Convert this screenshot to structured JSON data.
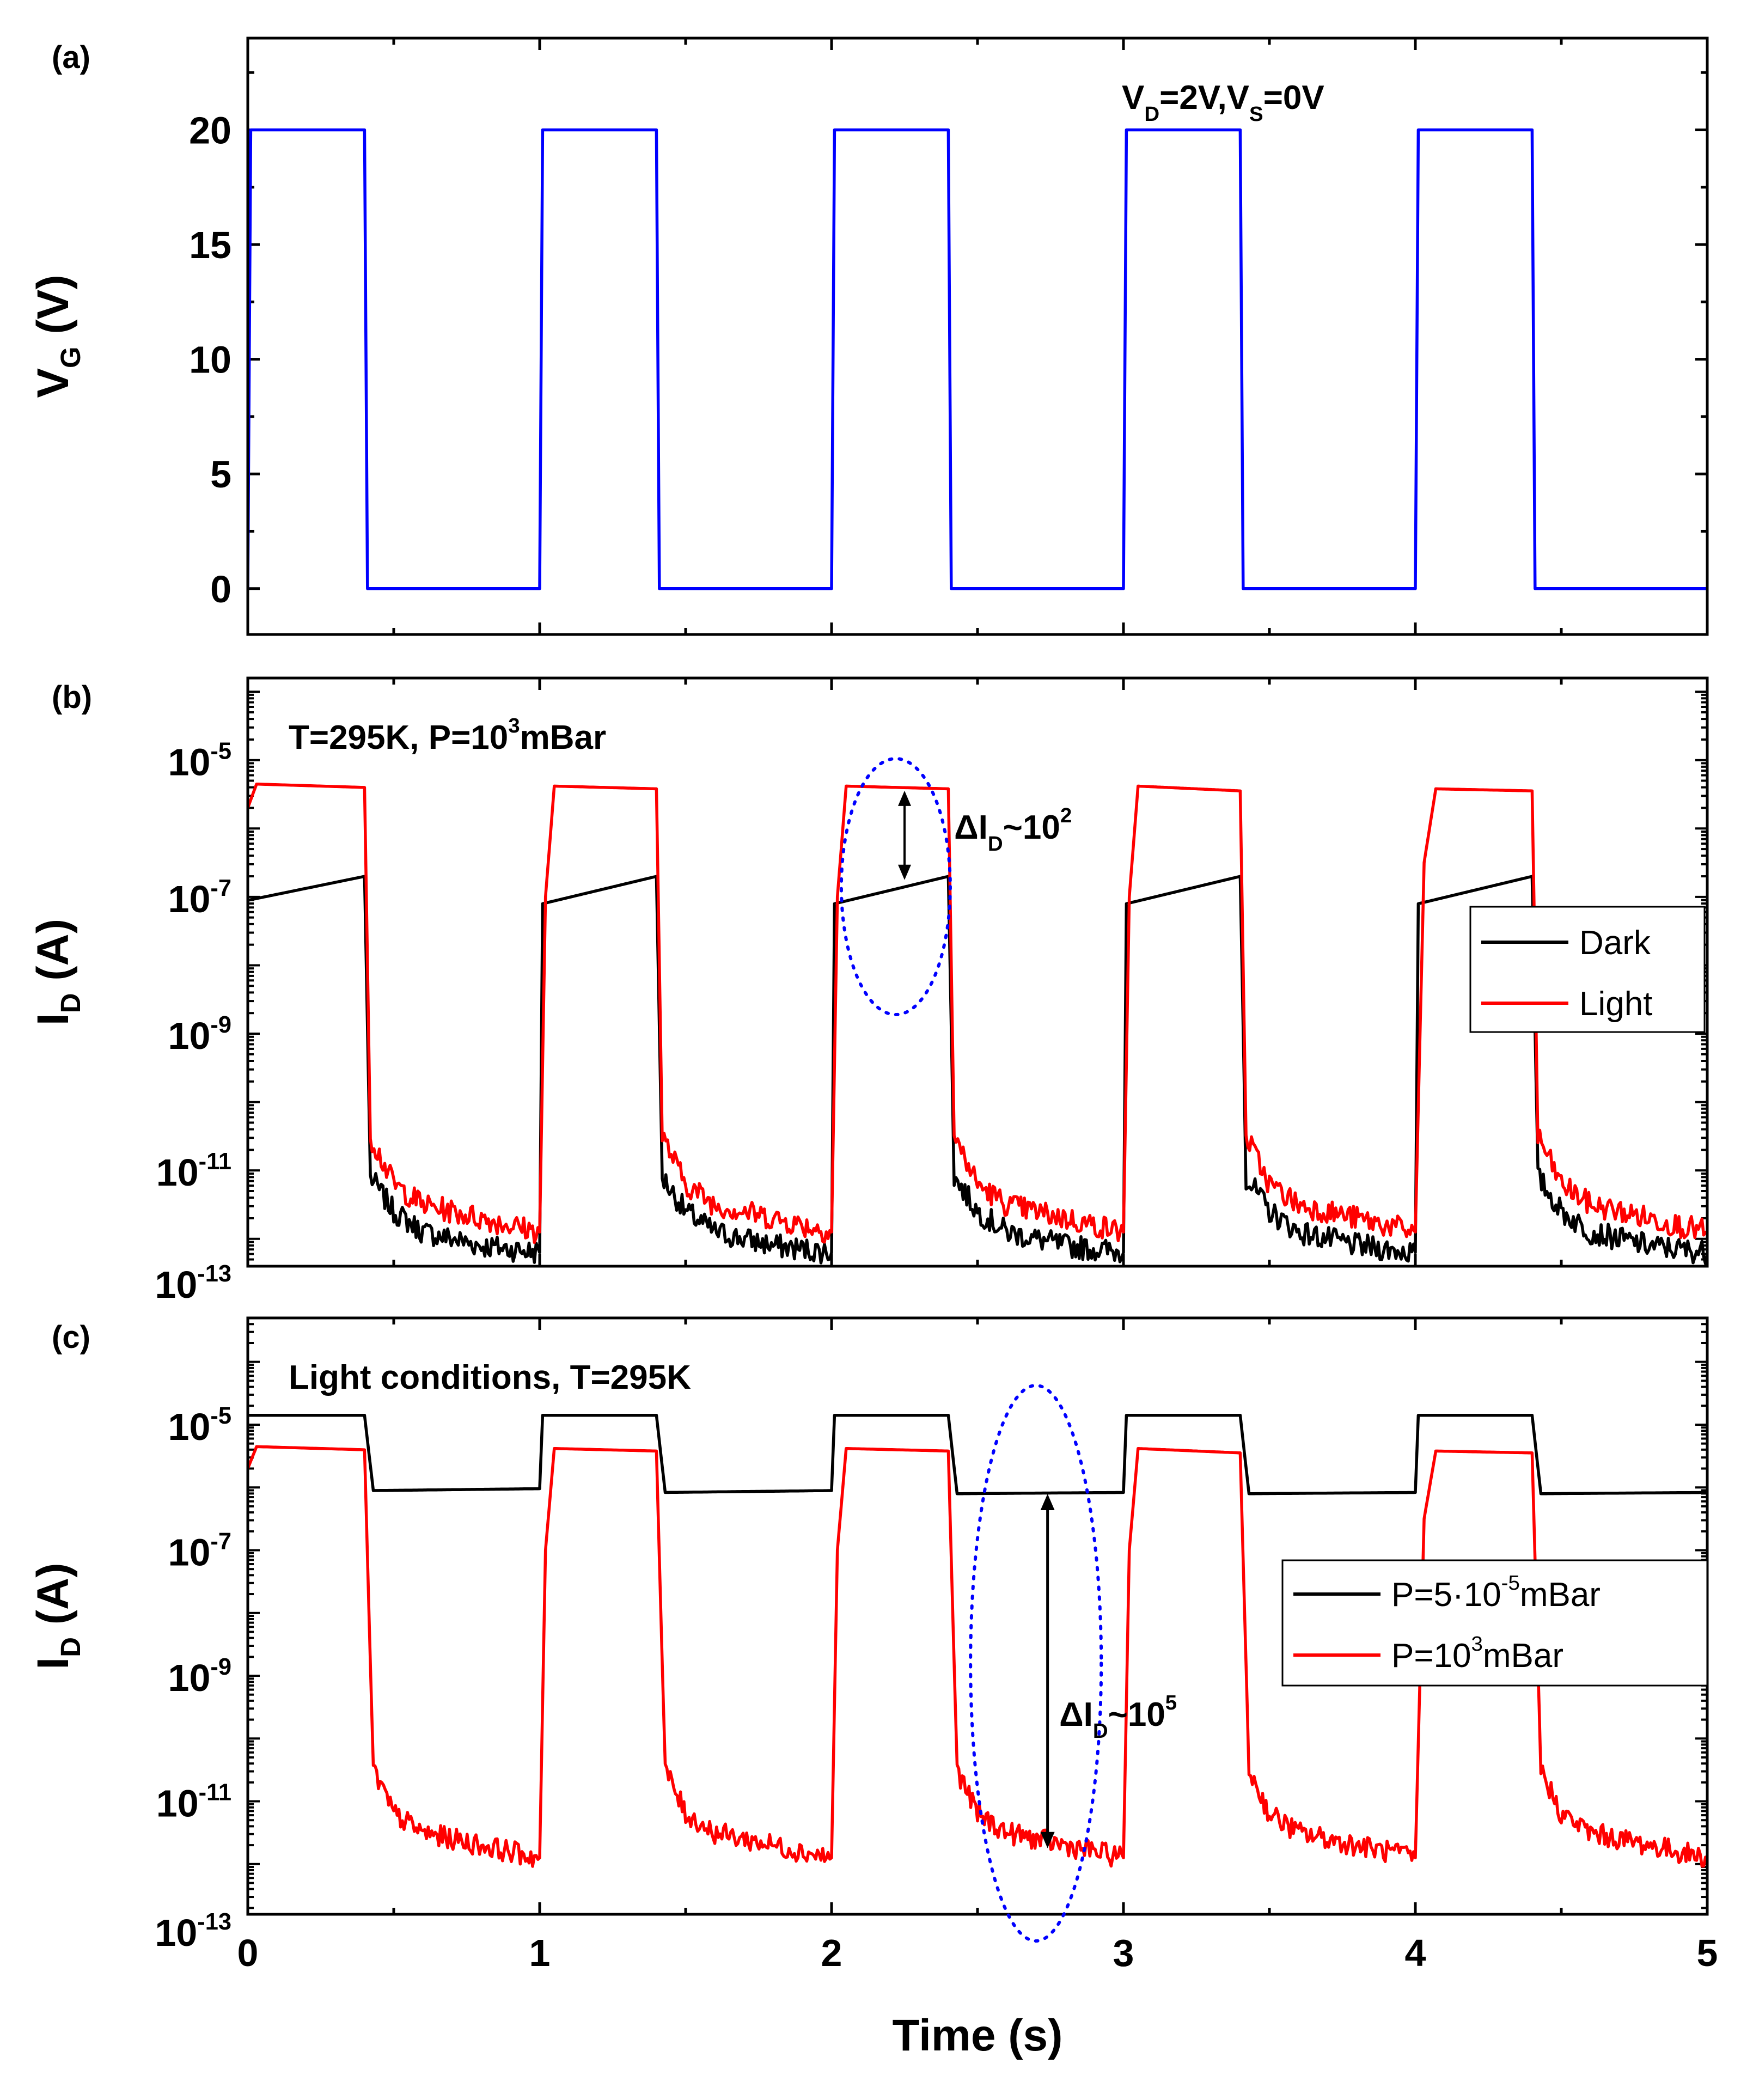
{
  "colors": {
    "vg_line": "#0000ff",
    "dark": "#000000",
    "light": "#ff0000",
    "ellipse": "#0000ff"
  },
  "chart_data": [
    {
      "type": "line",
      "panel": "(a)",
      "xlabel": "",
      "ylabel": "V",
      "ylabel_sub": "G",
      "ylabel_unit": " (V)",
      "xlim": [
        0,
        5
      ],
      "ylim": [
        -2,
        24
      ],
      "yticks": [
        "0",
        "5",
        "10",
        "15",
        "20"
      ],
      "annotation": {
        "parts": [
          [
            "V",
            ""
          ],
          [
            "D",
            "sub"
          ],
          [
            "=2V,V",
            ""
          ],
          [
            "S",
            "sub"
          ],
          [
            "=0V",
            ""
          ]
        ]
      },
      "series": [
        {
          "name": "V_G",
          "color": "#0000ff",
          "x": [
            0,
            0.01,
            0.4,
            0.41,
            1.0,
            1.01,
            1.4,
            1.41,
            2.0,
            2.01,
            2.4,
            2.41,
            3.0,
            3.01,
            3.4,
            3.41,
            4.0,
            4.01,
            4.4,
            4.41,
            5.0
          ],
          "y": [
            0,
            20,
            20,
            0,
            0,
            20,
            20,
            0,
            0,
            20,
            20,
            0,
            0,
            20,
            20,
            0,
            0,
            20,
            20,
            0,
            0
          ]
        }
      ]
    },
    {
      "type": "line",
      "panel": "(b)",
      "ylabel": "I",
      "ylabel_sub": "D",
      "ylabel_unit": " (A)",
      "yscale": "log",
      "xlim": [
        0,
        5
      ],
      "ylim_log10": [
        -12.4,
        -3.8
      ],
      "yticks": [
        {
          "base": "10",
          "exp": "-5"
        },
        {
          "base": "10",
          "exp": "-7"
        },
        {
          "base": "10",
          "exp": "-9"
        },
        {
          "base": "10",
          "exp": "-11"
        },
        {
          "base": "10",
          "exp": "-13"
        }
      ],
      "annotation": {
        "parts": [
          [
            "T=295K, P=10",
            ""
          ],
          [
            "3",
            "sup"
          ],
          [
            "mBar",
            ""
          ]
        ]
      },
      "delta_label": {
        "parts": [
          [
            "ΔI",
            ""
          ],
          [
            "D",
            "sub"
          ],
          [
            "~10",
            ""
          ],
          [
            "2",
            "sup"
          ]
        ]
      },
      "legend": [
        "Dark",
        "Light"
      ],
      "series": [
        {
          "name": "Dark",
          "color": "#000000",
          "x": [
            0,
            0.4,
            0.42,
            0.5,
            0.6,
            0.8,
            1.0,
            1.01,
            1.4,
            1.42,
            1.5,
            1.6,
            1.8,
            2.0,
            2.01,
            2.4,
            2.42,
            2.5,
            2.6,
            2.8,
            3.0,
            3.01,
            3.4,
            3.42,
            3.5,
            3.6,
            3.8,
            4.0,
            4.01,
            4.4,
            4.42,
            4.5,
            4.6,
            4.8,
            5.0
          ],
          "log10_y": [
            -7.05,
            -6.7,
            -11.1,
            -11.6,
            -11.9,
            -12.1,
            -12.2,
            -7.1,
            -6.7,
            -11.1,
            -11.6,
            -11.9,
            -12.1,
            -12.2,
            -7.1,
            -6.7,
            -11.1,
            -11.6,
            -11.9,
            -12.1,
            -12.2,
            -7.1,
            -6.7,
            -11.1,
            -11.6,
            -11.9,
            -12.1,
            -12.2,
            -7.1,
            -6.7,
            -11.1,
            -11.6,
            -11.9,
            -12.1,
            -12.2
          ]
        },
        {
          "name": "Light",
          "color": "#ff0000",
          "x": [
            0,
            0.03,
            0.4,
            0.42,
            0.5,
            0.6,
            0.8,
            1.0,
            1.02,
            1.05,
            1.4,
            1.42,
            1.5,
            1.6,
            1.8,
            2.0,
            2.02,
            2.05,
            2.4,
            2.42,
            2.5,
            2.6,
            2.8,
            3.0,
            3.02,
            3.05,
            3.4,
            3.42,
            3.5,
            3.6,
            3.8,
            4.0,
            4.03,
            4.07,
            4.4,
            4.42,
            4.5,
            4.6,
            4.8,
            5.0
          ],
          "log10_y": [
            -5.7,
            -5.35,
            -5.4,
            -10.5,
            -11.2,
            -11.5,
            -11.7,
            -11.9,
            -7.0,
            -5.38,
            -5.42,
            -10.5,
            -11.2,
            -11.5,
            -11.7,
            -11.9,
            -7.0,
            -5.38,
            -5.42,
            -10.5,
            -11.2,
            -11.5,
            -11.7,
            -11.9,
            -7.0,
            -5.38,
            -5.45,
            -10.5,
            -11.2,
            -11.5,
            -11.7,
            -11.9,
            -6.5,
            -5.42,
            -5.45,
            -10.5,
            -11.2,
            -11.5,
            -11.7,
            -11.9
          ]
        }
      ]
    },
    {
      "type": "line",
      "panel": "(c)",
      "xlabel": "Time (s)",
      "ylabel": "I",
      "ylabel_sub": "D",
      "ylabel_unit": " (A)",
      "yscale": "log",
      "xlim": [
        0,
        5
      ],
      "ylim_log10": [
        -12.8,
        -3.3
      ],
      "xticks": [
        "0",
        "1",
        "2",
        "3",
        "4",
        "5"
      ],
      "yticks": [
        {
          "base": "10",
          "exp": "-5"
        },
        {
          "base": "10",
          "exp": "-7"
        },
        {
          "base": "10",
          "exp": "-9"
        },
        {
          "base": "10",
          "exp": "-11"
        },
        {
          "base": "10",
          "exp": "-13"
        }
      ],
      "annotation": {
        "parts": [
          [
            "Light conditions, T=295K",
            ""
          ]
        ]
      },
      "delta_label": {
        "parts": [
          [
            "ΔI",
            ""
          ],
          [
            "D",
            "sub"
          ],
          [
            "~10",
            ""
          ],
          [
            "5",
            "sup"
          ]
        ]
      },
      "legend": [
        {
          "parts": [
            [
              "P=5·10",
              ""
            ],
            [
              "-5",
              "sup"
            ],
            [
              "mBar",
              ""
            ]
          ]
        },
        {
          "parts": [
            [
              "P=10",
              ""
            ],
            [
              "3",
              "sup"
            ],
            [
              "mBar",
              ""
            ]
          ]
        }
      ],
      "series": [
        {
          "name": "P=5·10^-5 mBar",
          "color": "#000000",
          "x": [
            0,
            0.4,
            0.43,
            1.0,
            1.01,
            1.4,
            1.43,
            2.0,
            2.01,
            2.4,
            2.43,
            3.0,
            3.01,
            3.4,
            3.43,
            4.0,
            4.01,
            4.4,
            4.43,
            5.0
          ],
          "log10_y": [
            -4.85,
            -4.85,
            -6.05,
            -6.02,
            -4.85,
            -4.85,
            -6.08,
            -6.05,
            -4.85,
            -4.85,
            -6.1,
            -6.08,
            -4.85,
            -4.85,
            -6.1,
            -6.08,
            -4.85,
            -4.85,
            -6.1,
            -6.08
          ]
        },
        {
          "name": "P=10^3 mBar",
          "color": "#ff0000",
          "x": [
            0,
            0.03,
            0.4,
            0.43,
            0.5,
            0.6,
            0.8,
            1.0,
            1.02,
            1.05,
            1.4,
            1.43,
            1.5,
            1.6,
            1.8,
            2.0,
            2.02,
            2.05,
            2.4,
            2.43,
            2.5,
            2.6,
            2.8,
            3.0,
            3.02,
            3.05,
            3.4,
            3.43,
            3.5,
            3.6,
            3.8,
            4.0,
            4.03,
            4.07,
            4.4,
            4.43,
            4.5,
            4.6,
            4.8,
            5.0
          ],
          "log10_y": [
            -5.7,
            -5.35,
            -5.4,
            -10.5,
            -11.2,
            -11.5,
            -11.7,
            -11.9,
            -7.0,
            -5.38,
            -5.42,
            -10.5,
            -11.2,
            -11.5,
            -11.7,
            -11.9,
            -7.0,
            -5.38,
            -5.42,
            -10.5,
            -11.2,
            -11.5,
            -11.7,
            -11.9,
            -7.0,
            -5.38,
            -5.45,
            -10.5,
            -11.2,
            -11.5,
            -11.7,
            -11.9,
            -6.5,
            -5.42,
            -5.45,
            -10.5,
            -11.2,
            -11.5,
            -11.7,
            -11.9
          ]
        }
      ]
    }
  ]
}
